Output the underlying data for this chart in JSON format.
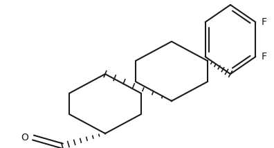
{
  "bg_color": "#ffffff",
  "line_color": "#1a1a1a",
  "line_width": 1.5,
  "font_size": 10,
  "figsize": [
    3.96,
    2.14
  ],
  "dpi": 100,
  "xlim": [
    0,
    396
  ],
  "ylim": [
    0,
    214
  ]
}
